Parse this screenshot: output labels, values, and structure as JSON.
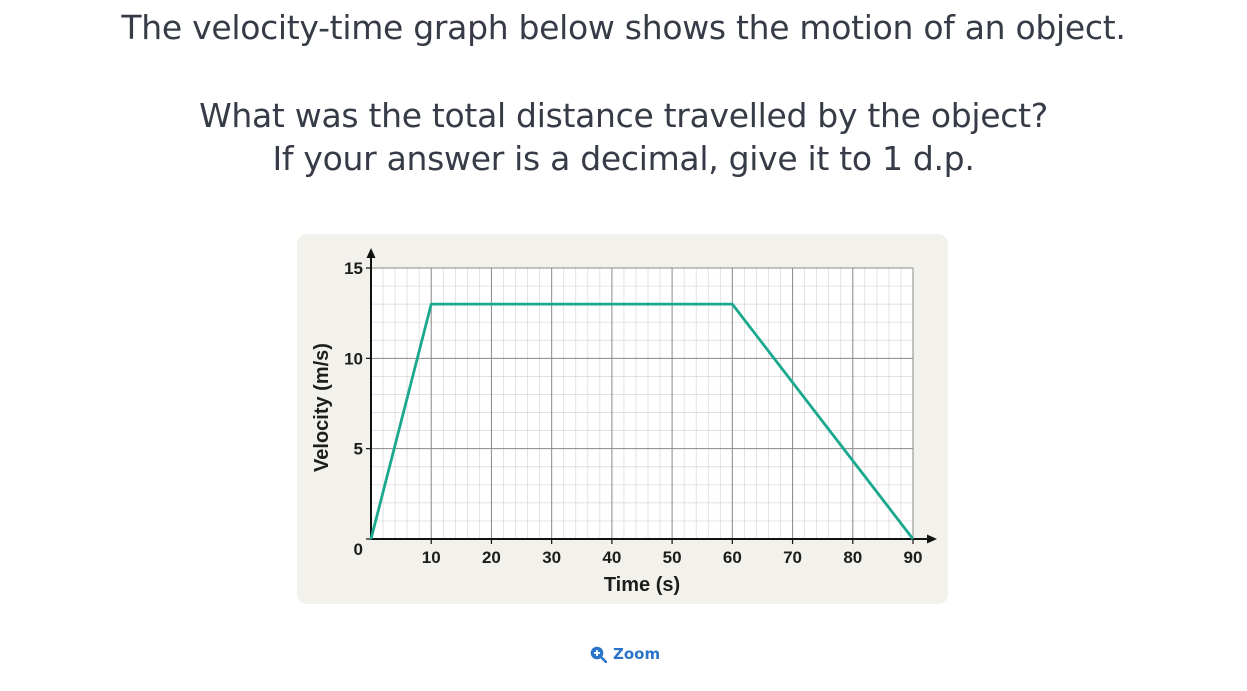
{
  "question": {
    "line1": "The velocity-time graph below shows the motion of an object.",
    "line2": "What was the total distance travelled by the object?",
    "line3": "If your answer is a decimal, give it to 1 d.p."
  },
  "zoom": {
    "label": "Zoom",
    "icon": "zoom-in-icon",
    "color": "#2a74c9"
  },
  "chart_data": {
    "type": "line",
    "xlabel": "Time (s)",
    "ylabel": "Velocity (m/s)",
    "xlim": [
      0,
      90
    ],
    "ylim": [
      0,
      15
    ],
    "x_ticks": [
      10,
      20,
      30,
      40,
      50,
      60,
      70,
      80,
      90
    ],
    "y_ticks": [
      0,
      5,
      10,
      15
    ],
    "grid": true,
    "series": [
      {
        "x": [
          0,
          10,
          60,
          90
        ],
        "y": [
          0,
          13,
          13,
          0
        ],
        "color": "#1aa88e"
      }
    ]
  }
}
